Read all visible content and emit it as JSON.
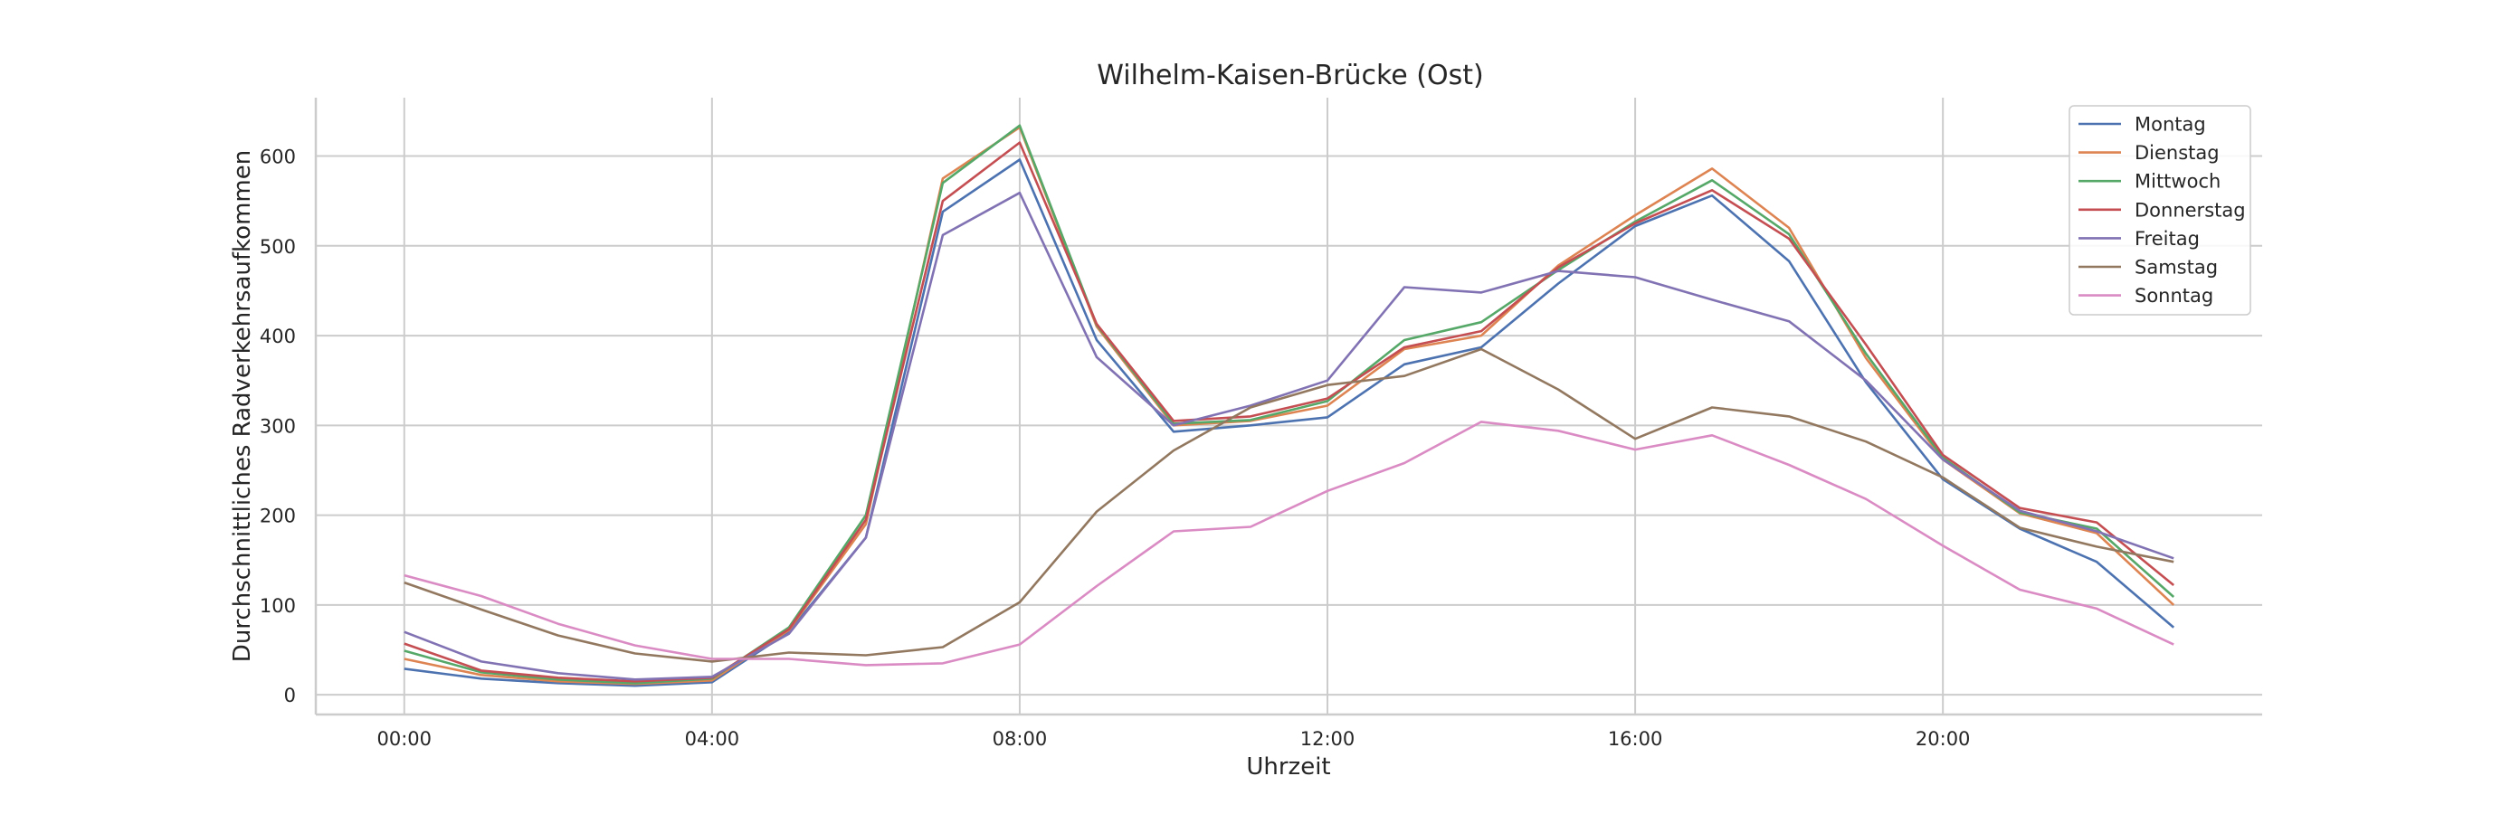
{
  "chart_data": {
    "type": "line",
    "title": "Wilhelm-Kaisen-Brücke (Ost)",
    "xlabel": "Uhrzeit",
    "ylabel": "Durchschnittliches Radverkehrsaufkommen",
    "x": [
      0,
      1,
      2,
      3,
      4,
      5,
      6,
      7,
      8,
      9,
      10,
      11,
      12,
      13,
      14,
      15,
      16,
      17,
      18,
      19,
      20,
      21,
      22,
      23
    ],
    "x_ticks": [
      {
        "value": 0,
        "label": "00:00"
      },
      {
        "value": 4,
        "label": "04:00"
      },
      {
        "value": 8,
        "label": "08:00"
      },
      {
        "value": 12,
        "label": "12:00"
      },
      {
        "value": 16,
        "label": "16:00"
      },
      {
        "value": 20,
        "label": "20:00"
      }
    ],
    "y_ticks": [
      {
        "value": 0,
        "label": "0"
      },
      {
        "value": 100,
        "label": "100"
      },
      {
        "value": 200,
        "label": "200"
      },
      {
        "value": 300,
        "label": "300"
      },
      {
        "value": 400,
        "label": "400"
      },
      {
        "value": 500,
        "label": "500"
      },
      {
        "value": 600,
        "label": "600"
      }
    ],
    "xlim": [
      -1.15,
      24.15
    ],
    "ylim": [
      -22,
      665
    ],
    "grid": true,
    "legend_position": "top-right",
    "series": [
      {
        "name": "Montag",
        "color": "#4c72b0",
        "values": [
          29,
          18,
          13,
          10,
          14,
          70,
          175,
          538,
          596,
          395,
          293,
          300,
          309,
          368,
          387,
          458,
          522,
          556,
          483,
          348,
          240,
          185,
          148,
          75
        ]
      },
      {
        "name": "Dienstag",
        "color": "#dd8452",
        "values": [
          40,
          22,
          15,
          12,
          16,
          72,
          190,
          575,
          632,
          410,
          300,
          305,
          322,
          385,
          400,
          478,
          534,
          586,
          520,
          375,
          262,
          202,
          180,
          100
        ]
      },
      {
        "name": "Mittwoch",
        "color": "#55a868",
        "values": [
          49,
          25,
          17,
          13,
          18,
          75,
          200,
          570,
          634,
          412,
          302,
          306,
          327,
          395,
          415,
          473,
          527,
          573,
          513,
          380,
          264,
          203,
          185,
          109
        ]
      },
      {
        "name": "Donnerstag",
        "color": "#c44e52",
        "values": [
          57,
          27,
          19,
          15,
          19,
          73,
          195,
          550,
          615,
          413,
          305,
          310,
          330,
          387,
          405,
          476,
          525,
          562,
          508,
          390,
          267,
          208,
          192,
          122
        ]
      },
      {
        "name": "Freitag",
        "color": "#8172b3",
        "values": [
          70,
          37,
          24,
          17,
          20,
          68,
          175,
          512,
          559,
          376,
          300,
          322,
          350,
          454,
          448,
          472,
          465,
          440,
          416,
          350,
          262,
          205,
          182,
          152
        ]
      },
      {
        "name": "Samstag",
        "color": "#937860",
        "values": [
          125,
          95,
          66,
          46,
          37,
          47,
          44,
          53,
          103,
          204,
          272,
          320,
          345,
          355,
          385,
          340,
          285,
          320,
          310,
          282,
          242,
          186,
          165,
          148
        ]
      },
      {
        "name": "Sonntag",
        "color": "#da8bc3",
        "values": [
          133,
          110,
          79,
          55,
          40,
          40,
          33,
          35,
          56,
          121,
          182,
          187,
          227,
          258,
          304,
          294,
          273,
          289,
          256,
          218,
          166,
          117,
          96,
          56
        ]
      }
    ]
  }
}
